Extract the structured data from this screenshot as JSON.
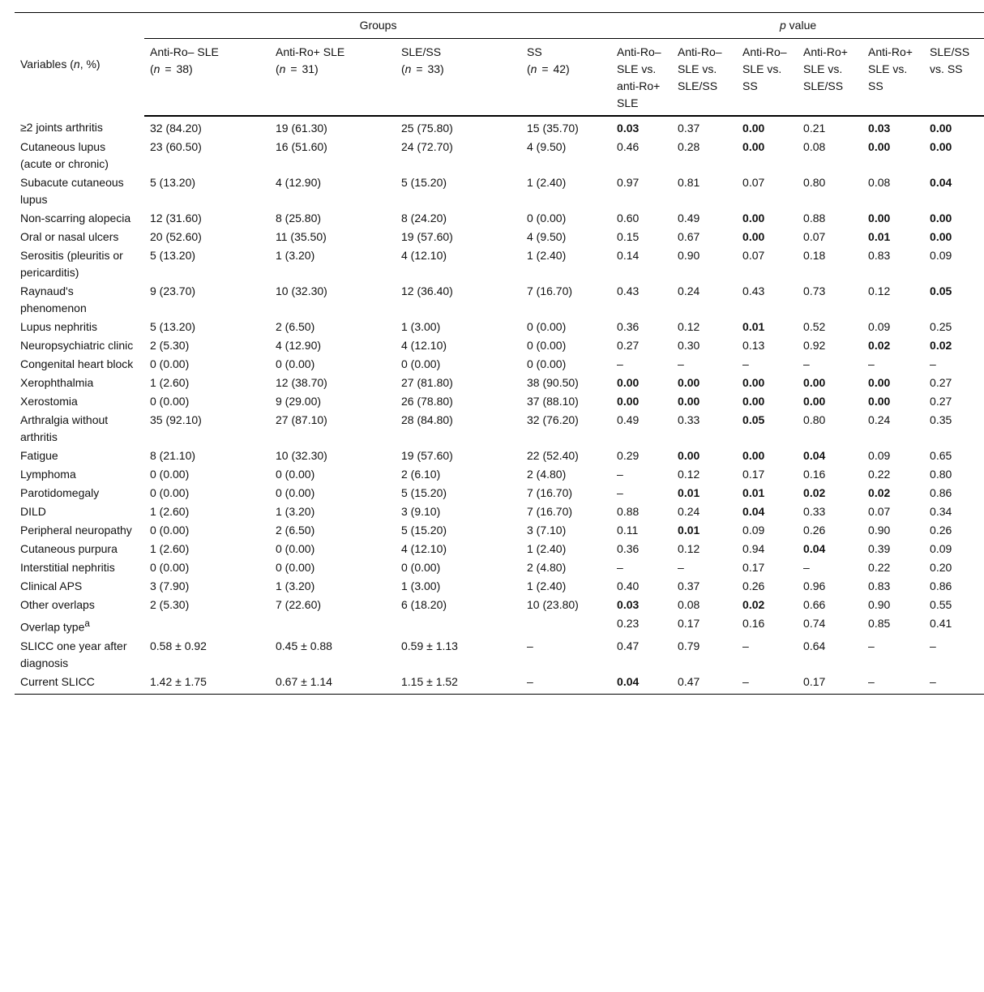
{
  "header": {
    "variables_prefix": "Variables (",
    "variables_n": "n",
    "variables_suffix": ", %)",
    "groups_label": "Groups",
    "pvalue_p": "p",
    "pvalue_label": " value",
    "groups": [
      {
        "name": "Anti-Ro– SLE",
        "n": "38"
      },
      {
        "name": "Anti-Ro+ SLE",
        "n": "31"
      },
      {
        "name": "SLE/SS",
        "n": "33"
      },
      {
        "name": "SS",
        "n": "42"
      }
    ],
    "comparisons": [
      "Anti-Ro– SLE vs. anti-Ro+ SLE",
      "Anti-Ro– SLE vs. SLE/SS",
      "Anti-Ro– SLE vs. SS",
      "Anti-Ro+ SLE vs. SLE/SS",
      "Anti-Ro+ SLE vs. SS",
      "SLE/SS vs. SS"
    ]
  },
  "rows": [
    {
      "variable": "≥2 joints arthritis",
      "groups": [
        "32 (84.20)",
        "19 (61.30)",
        "25 (75.80)",
        "15 (35.70)"
      ],
      "p": [
        "0.03",
        "0.37",
        "0.00",
        "0.21",
        "0.03",
        "0.00"
      ],
      "bold": [
        0,
        2,
        4,
        5
      ]
    },
    {
      "variable": "Cutaneous lupus (acute or chronic)",
      "groups": [
        "23 (60.50)",
        "16 (51.60)",
        "24 (72.70)",
        "4 (9.50)"
      ],
      "p": [
        "0.46",
        "0.28",
        "0.00",
        "0.08",
        "0.00",
        "0.00"
      ],
      "bold": [
        2,
        4,
        5
      ]
    },
    {
      "variable": "Subacute cutaneous lupus",
      "groups": [
        "5 (13.20)",
        "4 (12.90)",
        "5 (15.20)",
        "1 (2.40)"
      ],
      "p": [
        "0.97",
        "0.81",
        "0.07",
        "0.80",
        "0.08",
        "0.04"
      ],
      "bold": [
        5
      ]
    },
    {
      "variable": "Non-scarring alopecia",
      "groups": [
        "12 (31.60)",
        "8 (25.80)",
        "8 (24.20)",
        "0 (0.00)"
      ],
      "p": [
        "0.60",
        "0.49",
        "0.00",
        "0.88",
        "0.00",
        "0.00"
      ],
      "bold": [
        2,
        4,
        5
      ]
    },
    {
      "variable": "Oral or nasal ulcers",
      "groups": [
        "20 (52.60)",
        "11 (35.50)",
        "19 (57.60)",
        "4 (9.50)"
      ],
      "p": [
        "0.15",
        "0.67",
        "0.00",
        "0.07",
        "0.01",
        "0.00"
      ],
      "bold": [
        2,
        4,
        5
      ]
    },
    {
      "variable": "Serositis (pleuritis or pericarditis)",
      "groups": [
        "5 (13.20)",
        "1 (3.20)",
        "4 (12.10)",
        "1 (2.40)"
      ],
      "p": [
        "0.14",
        "0.90",
        "0.07",
        "0.18",
        "0.83",
        "0.09"
      ],
      "bold": []
    },
    {
      "variable": "Raynaud's phenomenon",
      "groups": [
        "9 (23.70)",
        "10 (32.30)",
        "12 (36.40)",
        "7 (16.70)"
      ],
      "p": [
        "0.43",
        "0.24",
        "0.43",
        "0.73",
        "0.12",
        "0.05"
      ],
      "bold": [
        5
      ]
    },
    {
      "variable": "Lupus nephritis",
      "groups": [
        "5 (13.20)",
        "2 (6.50)",
        "1 (3.00)",
        "0 (0.00)"
      ],
      "p": [
        "0.36",
        "0.12",
        "0.01",
        "0.52",
        "0.09",
        "0.25"
      ],
      "bold": [
        2
      ]
    },
    {
      "variable": "Neuropsychiatric clinic",
      "groups": [
        "2 (5.30)",
        "4 (12.90)",
        "4 (12.10)",
        "0 (0.00)"
      ],
      "p": [
        "0.27",
        "0.30",
        "0.13",
        "0.92",
        "0.02",
        "0.02"
      ],
      "bold": [
        4,
        5
      ]
    },
    {
      "variable": "Congenital heart block",
      "groups": [
        "0 (0.00)",
        "0 (0.00)",
        "0 (0.00)",
        "0 (0.00)"
      ],
      "p": [
        "–",
        "–",
        "–",
        "–",
        "–",
        "–"
      ],
      "bold": []
    },
    {
      "variable": "Xerophthalmia",
      "groups": [
        "1 (2.60)",
        "12 (38.70)",
        "27 (81.80)",
        "38 (90.50)"
      ],
      "p": [
        "0.00",
        "0.00",
        "0.00",
        "0.00",
        "0.00",
        "0.27"
      ],
      "bold": [
        0,
        1,
        2,
        3,
        4
      ]
    },
    {
      "variable": "Xerostomia",
      "groups": [
        "0 (0.00)",
        "9 (29.00)",
        "26 (78.80)",
        "37 (88.10)"
      ],
      "p": [
        "0.00",
        "0.00",
        "0.00",
        "0.00",
        "0.00",
        "0.27"
      ],
      "bold": [
        0,
        1,
        2,
        3,
        4
      ]
    },
    {
      "variable": "Arthralgia without arthritis",
      "groups": [
        "35 (92.10)",
        "27 (87.10)",
        "28 (84.80)",
        "32 (76.20)"
      ],
      "p": [
        "0.49",
        "0.33",
        "0.05",
        "0.80",
        "0.24",
        "0.35"
      ],
      "bold": [
        2
      ]
    },
    {
      "variable": "Fatigue",
      "groups": [
        "8 (21.10)",
        "10 (32.30)",
        "19 (57.60)",
        "22 (52.40)"
      ],
      "p": [
        "0.29",
        "0.00",
        "0.00",
        "0.04",
        "0.09",
        "0.65"
      ],
      "bold": [
        1,
        2,
        3
      ]
    },
    {
      "variable": "Lymphoma",
      "groups": [
        "0 (0.00)",
        "0 (0.00)",
        "2 (6.10)",
        "2 (4.80)"
      ],
      "p": [
        "–",
        "0.12",
        "0.17",
        "0.16",
        "0.22",
        "0.80"
      ],
      "bold": []
    },
    {
      "variable": "Parotidomegaly",
      "groups": [
        "0 (0.00)",
        "0 (0.00)",
        "5 (15.20)",
        "7 (16.70)"
      ],
      "p": [
        "–",
        "0.01",
        "0.01",
        "0.02",
        "0.02",
        "0.86"
      ],
      "bold": [
        1,
        2,
        3,
        4
      ]
    },
    {
      "variable": "DILD",
      "groups": [
        "1 (2.60)",
        "1 (3.20)",
        "3 (9.10)",
        "7 (16.70)"
      ],
      "p": [
        "0.88",
        "0.24",
        "0.04",
        "0.33",
        "0.07",
        "0.34"
      ],
      "bold": [
        2
      ]
    },
    {
      "variable": "Peripheral neuropathy",
      "groups": [
        "0 (0.00)",
        "2 (6.50)",
        "5 (15.20)",
        "3 (7.10)"
      ],
      "p": [
        "0.11",
        "0.01",
        "0.09",
        "0.26",
        "0.90",
        "0.26"
      ],
      "bold": [
        1
      ]
    },
    {
      "variable": "Cutaneous purpura",
      "groups": [
        "1 (2.60)",
        "0 (0.00)",
        "4 (12.10)",
        "1 (2.40)"
      ],
      "p": [
        "0.36",
        "0.12",
        "0.94",
        "0.04",
        "0.39",
        "0.09"
      ],
      "bold": [
        3
      ]
    },
    {
      "variable": "Interstitial nephritis",
      "groups": [
        "0 (0.00)",
        "0 (0.00)",
        "0 (0.00)",
        "2 (4.80)"
      ],
      "p": [
        "–",
        "–",
        "0.17",
        "–",
        "0.22",
        "0.20"
      ],
      "bold": []
    },
    {
      "variable": "Clinical APS",
      "groups": [
        "3 (7.90)",
        "1 (3.20)",
        "1 (3.00)",
        "1 (2.40)"
      ],
      "p": [
        "0.40",
        "0.37",
        "0.26",
        "0.96",
        "0.83",
        "0.86"
      ],
      "bold": []
    },
    {
      "variable": "Other overlaps",
      "groups": [
        "2 (5.30)",
        "7 (22.60)",
        "6 (18.20)",
        "10 (23.80)"
      ],
      "p": [
        "0.03",
        "0.08",
        "0.02",
        "0.66",
        "0.90",
        "0.55"
      ],
      "bold": [
        0,
        2
      ]
    },
    {
      "variable": "Overlap type",
      "sup": "a",
      "groups": [
        "",
        "",
        "",
        ""
      ],
      "p": [
        "0.23",
        "0.17",
        "0.16",
        "0.74",
        "0.85",
        "0.41"
      ],
      "bold": []
    },
    {
      "variable": "SLICC one year after diagnosis",
      "groups": [
        "0.58 ± 0.92",
        "0.45 ± 0.88",
        "0.59 ± 1.13",
        "–"
      ],
      "p": [
        "0.47",
        "0.79",
        "–",
        "0.64",
        "–",
        "–"
      ],
      "bold": []
    },
    {
      "variable": "Current SLICC",
      "groups": [
        "1.42 ± 1.75",
        "0.67 ± 1.14",
        "1.15 ± 1.52",
        "–"
      ],
      "p": [
        "0.04",
        "0.47",
        "–",
        "0.17",
        "–",
        "–"
      ],
      "bold": [
        0
      ]
    }
  ]
}
